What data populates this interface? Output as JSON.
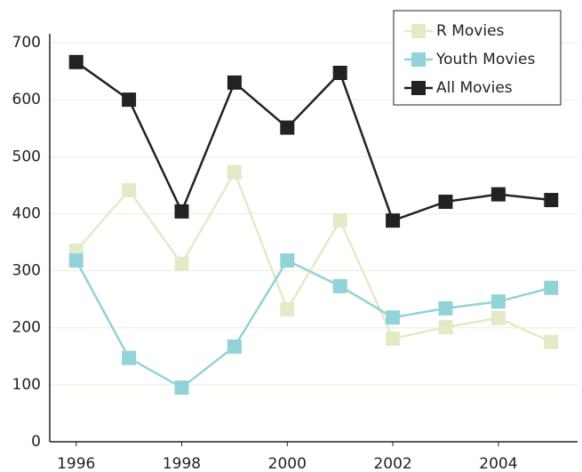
{
  "chart_data": {
    "type": "line",
    "x": [
      1996,
      1997,
      1998,
      1999,
      2000,
      2001,
      2002,
      2003,
      2004,
      2005
    ],
    "series": [
      {
        "name": "R Movies",
        "color": "#e2ebc6",
        "values": [
          335,
          441,
          312,
          473,
          232,
          388,
          181,
          201,
          217,
          175
        ]
      },
      {
        "name": "Youth Movies",
        "color": "#92d3d7",
        "values": [
          318,
          147,
          95,
          167,
          318,
          273,
          218,
          234,
          246,
          270
        ]
      },
      {
        "name": "All Movies",
        "color": "#222222",
        "values": [
          666,
          600,
          404,
          630,
          551,
          647,
          388,
          421,
          434,
          424
        ]
      }
    ],
    "xlim": [
      1995.5,
      2005.5
    ],
    "xticks": [
      1996,
      1998,
      2000,
      2002,
      2004
    ],
    "ylim": [
      0,
      700
    ],
    "yticks": [
      0,
      100,
      200,
      300,
      400,
      500,
      600,
      700
    ],
    "grid": true,
    "legend": "upper right"
  }
}
